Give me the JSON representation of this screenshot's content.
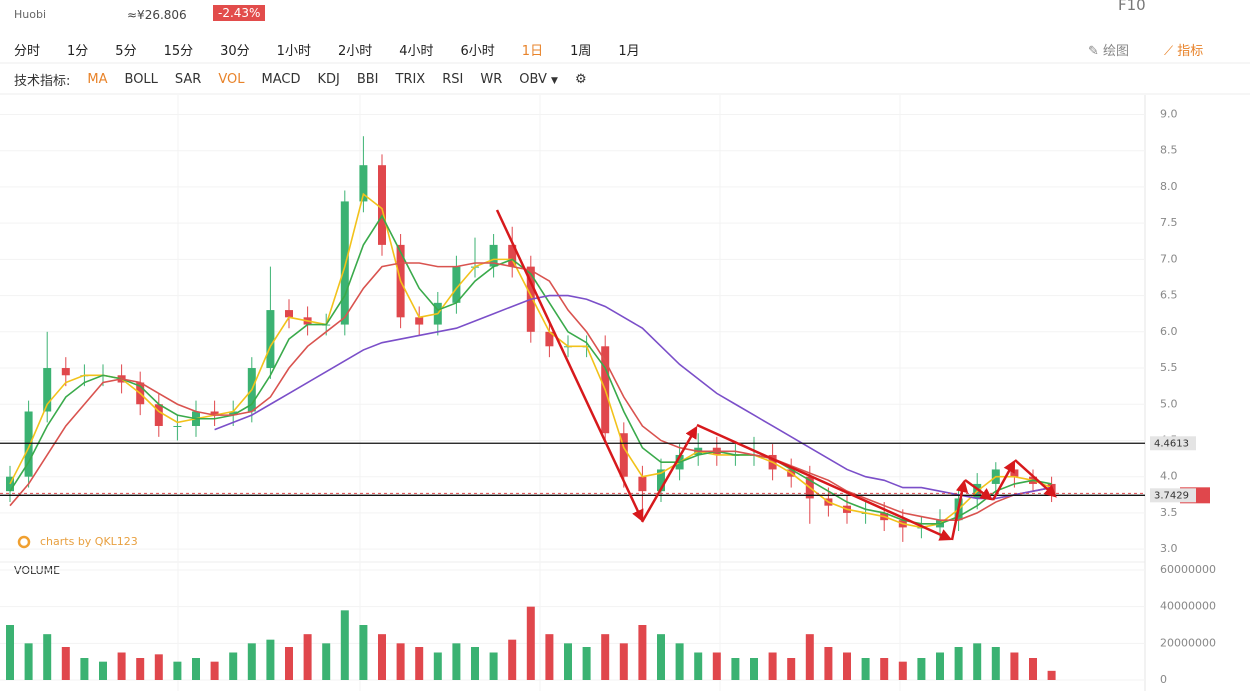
{
  "header": {
    "exchange": "Huobi",
    "price_cny": "≈¥26.806",
    "change": "-2.43%",
    "f10": "F10"
  },
  "toolbar": {
    "intervals": [
      "分时",
      "1分",
      "5分",
      "15分",
      "30分",
      "1小时",
      "2小时",
      "4小时",
      "6小时",
      "1日",
      "1周",
      "1月"
    ],
    "active_interval": 9,
    "draw": "绘图",
    "indicator": "指标"
  },
  "indicators": {
    "label": "技术指标:",
    "items": [
      "MA",
      "BOLL",
      "SAR",
      "VOL",
      "MACD",
      "KDJ",
      "BBI",
      "TRIX",
      "RSI",
      "WR",
      "OBV"
    ],
    "active": [
      0,
      3
    ]
  },
  "chart_data": {
    "type": "candlestick",
    "watermark": "charts by QKL123",
    "volume_label": "VOLUME",
    "up_color": "#3bb272",
    "down_color": "#e0474c",
    "open": [
      3.8,
      4.0,
      4.9,
      5.5,
      5.4,
      5.4,
      5.4,
      5.3,
      5.0,
      4.7,
      4.7,
      4.9,
      4.85,
      4.9,
      5.5,
      6.3,
      6.2,
      6.1,
      6.1,
      7.8,
      8.3,
      7.2,
      6.2,
      6.1,
      6.4,
      6.9,
      6.9,
      7.2,
      6.9,
      6.0,
      5.8,
      5.8,
      5.8,
      4.6,
      4.0,
      3.8,
      4.1,
      4.3,
      4.4,
      4.3,
      4.3,
      4.3,
      4.1,
      4.0,
      3.7,
      3.6,
      3.5,
      3.5,
      3.4,
      3.3,
      3.3,
      3.4,
      3.7,
      3.9,
      4.1,
      4.0,
      3.9
    ],
    "high": [
      4.15,
      5.05,
      6.0,
      5.65,
      5.55,
      5.55,
      5.55,
      5.45,
      5.15,
      4.85,
      5.05,
      5.05,
      5.05,
      5.65,
      6.9,
      6.45,
      6.35,
      6.25,
      7.95,
      8.7,
      8.45,
      7.35,
      6.35,
      6.55,
      7.05,
      7.3,
      7.35,
      7.45,
      7.05,
      6.15,
      5.95,
      5.95,
      5.95,
      4.75,
      4.15,
      4.25,
      4.45,
      4.6,
      4.55,
      4.45,
      4.55,
      4.45,
      4.25,
      4.15,
      3.85,
      3.75,
      3.65,
      3.65,
      3.55,
      3.45,
      3.55,
      3.85,
      4.05,
      4.2,
      4.2,
      4.1,
      4.0
    ],
    "low": [
      3.65,
      3.85,
      4.75,
      5.25,
      5.25,
      5.25,
      5.15,
      4.85,
      4.55,
      4.5,
      4.55,
      4.7,
      4.7,
      4.75,
      5.35,
      6.05,
      5.95,
      5.95,
      5.95,
      7.65,
      7.05,
      6.05,
      5.95,
      5.95,
      6.25,
      6.75,
      6.75,
      6.75,
      5.85,
      5.65,
      5.65,
      5.65,
      4.45,
      3.85,
      3.5,
      3.65,
      3.95,
      4.15,
      4.15,
      4.15,
      4.15,
      3.95,
      3.85,
      3.35,
      3.45,
      3.35,
      3.35,
      3.25,
      3.1,
      3.15,
      3.15,
      3.25,
      3.55,
      3.75,
      3.85,
      3.8,
      3.65
    ],
    "close": [
      4.0,
      4.9,
      5.5,
      5.4,
      5.4,
      5.4,
      5.3,
      5.0,
      4.7,
      4.7,
      4.9,
      4.85,
      4.9,
      5.5,
      6.3,
      6.2,
      6.1,
      6.1,
      7.8,
      8.3,
      7.2,
      6.2,
      6.1,
      6.4,
      6.9,
      6.9,
      7.2,
      6.9,
      6.0,
      5.8,
      5.8,
      5.8,
      4.6,
      4.0,
      3.8,
      4.1,
      4.3,
      4.4,
      4.3,
      4.3,
      4.3,
      4.1,
      4.0,
      3.7,
      3.6,
      3.5,
      3.5,
      3.4,
      3.3,
      3.3,
      3.4,
      3.7,
      3.9,
      4.1,
      4.0,
      3.9,
      3.74
    ],
    "volume": [
      30000000,
      20000000,
      25000000,
      18000000,
      12000000,
      10000000,
      15000000,
      12000000,
      14000000,
      10000000,
      12000000,
      10000000,
      15000000,
      20000000,
      22000000,
      18000000,
      25000000,
      20000000,
      38000000,
      30000000,
      25000000,
      20000000,
      18000000,
      15000000,
      20000000,
      18000000,
      15000000,
      22000000,
      40000000,
      25000000,
      20000000,
      18000000,
      25000000,
      20000000,
      30000000,
      25000000,
      20000000,
      15000000,
      15000000,
      12000000,
      12000000,
      15000000,
      12000000,
      25000000,
      18000000,
      15000000,
      12000000,
      12000000,
      10000000,
      12000000,
      15000000,
      18000000,
      20000000,
      18000000,
      15000000,
      12000000,
      5000000
    ],
    "series": [
      {
        "color": "#f2c21b",
        "values": [
          3.9,
          4.4,
          5.0,
          5.3,
          5.4,
          5.4,
          5.35,
          5.15,
          4.9,
          4.75,
          4.8,
          4.85,
          4.9,
          5.2,
          5.8,
          6.2,
          6.15,
          6.1,
          6.9,
          7.9,
          7.7,
          6.7,
          6.2,
          6.25,
          6.6,
          6.9,
          7.0,
          7.0,
          6.5,
          6.0,
          5.8,
          5.8,
          5.2,
          4.4,
          4.0,
          4.05,
          4.2,
          4.35,
          4.3,
          4.3,
          4.3,
          4.2,
          4.05,
          3.85,
          3.65,
          3.55,
          3.5,
          3.45,
          3.35,
          3.3,
          3.35,
          3.55,
          3.8,
          4.0,
          4.0,
          3.95,
          3.85
        ]
      },
      {
        "color": "#3aaa4b",
        "values": [
          3.8,
          4.2,
          4.7,
          5.1,
          5.3,
          5.4,
          5.35,
          5.25,
          5.0,
          4.85,
          4.8,
          4.8,
          4.85,
          5.0,
          5.4,
          5.9,
          6.1,
          6.1,
          6.5,
          7.2,
          7.6,
          7.1,
          6.6,
          6.3,
          6.4,
          6.7,
          6.9,
          7.0,
          6.8,
          6.4,
          6.0,
          5.85,
          5.5,
          4.9,
          4.4,
          4.2,
          4.2,
          4.3,
          4.35,
          4.3,
          4.3,
          4.25,
          4.1,
          3.95,
          3.8,
          3.65,
          3.55,
          3.5,
          3.4,
          3.35,
          3.35,
          3.45,
          3.6,
          3.8,
          3.9,
          3.95,
          3.9
        ]
      },
      {
        "color": "#d9534f",
        "values": [
          3.6,
          3.9,
          4.3,
          4.7,
          5.0,
          5.3,
          5.35,
          5.3,
          5.15,
          5.0,
          4.9,
          4.85,
          4.85,
          4.9,
          5.1,
          5.5,
          5.8,
          6.0,
          6.2,
          6.6,
          6.9,
          6.95,
          6.95,
          6.9,
          6.9,
          6.95,
          6.95,
          6.9,
          6.85,
          6.7,
          6.3,
          6.0,
          5.6,
          5.1,
          4.7,
          4.5,
          4.4,
          4.35,
          4.35,
          4.35,
          4.3,
          4.25,
          4.15,
          4.05,
          3.95,
          3.8,
          3.7,
          3.6,
          3.5,
          3.45,
          3.4,
          3.4,
          3.5,
          3.65,
          3.75,
          3.8,
          3.85
        ]
      },
      {
        "color": "#7b4fc9",
        "values": [
          null,
          null,
          null,
          null,
          null,
          null,
          null,
          null,
          null,
          null,
          null,
          4.65,
          4.75,
          4.85,
          5.0,
          5.15,
          5.3,
          5.45,
          5.6,
          5.75,
          5.85,
          5.9,
          5.95,
          6.0,
          6.05,
          6.15,
          6.25,
          6.35,
          6.45,
          6.5,
          6.5,
          6.45,
          6.35,
          6.2,
          6.05,
          5.8,
          5.55,
          5.35,
          5.15,
          5.0,
          4.85,
          4.7,
          4.55,
          4.4,
          4.25,
          4.1,
          4.0,
          3.95,
          3.85,
          3.85,
          3.8,
          3.75,
          3.7,
          3.7,
          3.75,
          3.8,
          3.85
        ]
      }
    ],
    "price_lines": [
      4.4613,
      3.7429
    ],
    "ylim": [
      2.85,
      9.2
    ],
    "yticks": [
      {
        "value": 3,
        "label": "3.0"
      },
      {
        "value": 3.5,
        "label": "3.5"
      },
      {
        "value": 4,
        "label": "4.0"
      },
      {
        "value": 4.5,
        "label": "4.5"
      },
      {
        "value": 5,
        "label": "5.0"
      },
      {
        "value": 5.5,
        "label": "5.5"
      },
      {
        "value": 6,
        "label": "6.0"
      },
      {
        "value": 6.5,
        "label": "6.5"
      },
      {
        "value": 7,
        "label": "7.0"
      },
      {
        "value": 7.5,
        "label": "7.5"
      },
      {
        "value": 8,
        "label": "8.0"
      },
      {
        "value": 8.5,
        "label": "8.5"
      },
      {
        "value": 9,
        "label": "9.0"
      }
    ],
    "y2lim": [
      0,
      60000000
    ],
    "y2ticks": [
      0,
      20000000,
      40000000,
      60000000
    ],
    "grid": true
  }
}
